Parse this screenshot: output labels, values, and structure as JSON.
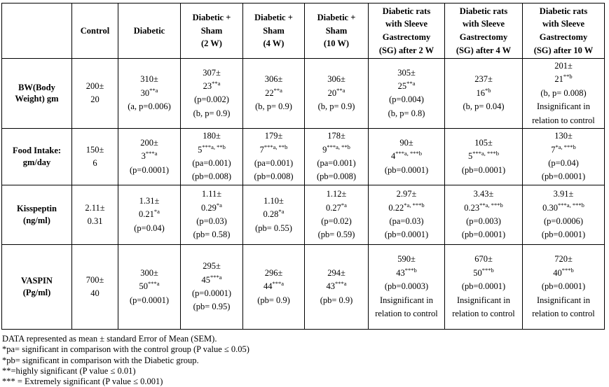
{
  "table": {
    "columns": [
      {
        "lines": [
          ""
        ]
      },
      {
        "lines": [
          "Control"
        ]
      },
      {
        "lines": [
          "Diabetic"
        ]
      },
      {
        "lines": [
          "Diabetic +",
          "Sham",
          "(2 W)"
        ]
      },
      {
        "lines": [
          "Diabetic +",
          "Sham",
          "(4 W)"
        ]
      },
      {
        "lines": [
          "Diabetic +",
          "Sham",
          "(10 W)"
        ]
      },
      {
        "lines": [
          "Diabetic rats",
          "with Sleeve",
          "Gastrectomy",
          "(SG) after 2 W"
        ]
      },
      {
        "lines": [
          "Diabetic rats",
          "with Sleeve",
          "Gastrectomy",
          "(SG) after 4 W"
        ]
      },
      {
        "lines": [
          "Diabetic rats",
          "with Sleeve",
          "Gastrectomy",
          "(SG) after 10 W"
        ]
      }
    ],
    "rows": [
      {
        "key": "r-bw",
        "label_lines": [
          "BW(Body",
          "Weight) gm"
        ],
        "cells": [
          [
            "200±",
            "20"
          ],
          [
            "310±",
            "30^{**a}",
            "(a, p=0.006)"
          ],
          [
            "307±",
            "23^{**a}",
            "(p=0.002)",
            "(b, p= 0.9)"
          ],
          [
            "306±",
            "22^{**a}",
            "(b, p= 0.9)"
          ],
          [
            "306±",
            "20^{**a}",
            "(b, p= 0.9)"
          ],
          [
            "305±",
            "25^{**a}",
            "(p=0.004)",
            "(b, p= 0.8)"
          ],
          [
            "237±",
            "16^{*b}",
            "(b, p= 0.04)"
          ],
          [
            "201±",
            "21^{**b}",
            "(b, p= 0.008)",
            "Insignificant in relation to control"
          ]
        ]
      },
      {
        "key": "r-food",
        "label_lines": [
          "Food Intake:",
          "gm/day"
        ],
        "cells": [
          [
            "150±",
            "6"
          ],
          [
            "200±",
            "3^{***a}",
            "(p=0.0001)"
          ],
          [
            "180±",
            "5^{***a, **b}",
            "(pa=0.001)",
            "(pb=0.008)"
          ],
          [
            "179±",
            "7^{***a, **b}",
            "(pa=0.001)",
            "(pb=0.008)"
          ],
          [
            "178±",
            "9^{***a, **b}",
            "(pa=0.001)",
            "(pb=0.008)"
          ],
          [
            "90±",
            "4^{***a, ***b}",
            "(pb=0.0001)"
          ],
          [
            "105±",
            "5^{***a, ***b}",
            "(pb=0.0001)"
          ],
          [
            "130±",
            "7^{*a, ***b}",
            "(p=0.04)",
            "(pb=0.0001)"
          ]
        ]
      },
      {
        "key": "r-kiss",
        "label_lines": [
          "Kisspeptin",
          "(ng/ml)"
        ],
        "cells": [
          [
            "2.11±",
            "0.31"
          ],
          [
            "1.31±",
            "0.21^{*a}",
            "(p=0.04)"
          ],
          [
            "1.11±",
            "0.29^{*a}",
            "(p=0.03)",
            "(pb= 0.58)"
          ],
          [
            "1.10±",
            "0.28^{*a}",
            "(pb= 0.55)"
          ],
          [
            "1.12±",
            "0.27^{*a}",
            "(p=0.02)",
            "(pb= 0.59)"
          ],
          [
            "2.97±",
            "0.22^{*a, ***b}",
            "(pa=0.03)",
            "(pb=0.0001)"
          ],
          [
            "3.43±",
            "0.23^{**a, ***b}",
            "(p=0.003)",
            "(pb=0.0001)"
          ],
          [
            "3.91±",
            "0.30^{***a, ***b}",
            "(p=0.0006)",
            "(pb=0.0001)"
          ]
        ]
      },
      {
        "key": "r-vaspin",
        "label_lines": [
          "VASPIN",
          "(Pg/ml)"
        ],
        "cells": [
          [
            "700±",
            "40"
          ],
          [
            "300±",
            "50^{***a}",
            "(p=0.0001)"
          ],
          [
            "295±",
            "45^{***a}",
            "(p=0.0001)",
            "(pb= 0.95)"
          ],
          [
            "296±",
            "44^{***a}",
            "(pb= 0.9)"
          ],
          [
            "294±",
            "43^{***a}",
            "(pb= 0.9)"
          ],
          [
            "590±",
            "43^{***b}",
            "(pb=0.0003)",
            "Insignificant in relation to control"
          ],
          [
            "670±",
            "50^{***b}",
            "(pb=0.0001)",
            "Insignificant in relation to control"
          ],
          [
            "720±",
            "40^{***b}",
            "(pb=0.0001)",
            "Insignificant in relation to control"
          ]
        ]
      }
    ]
  },
  "footnotes": [
    "DATA represented as mean ± standard Error of Mean (SEM).",
    "*pa= significant in comparison with the control group (P value ≤ 0.05)",
    "*pb= significant in comparison with the Diabetic group.",
    "**=highly significant (P value ≤ 0.01)",
    "*** = Extremely significant (P value ≤ 0.001)"
  ]
}
